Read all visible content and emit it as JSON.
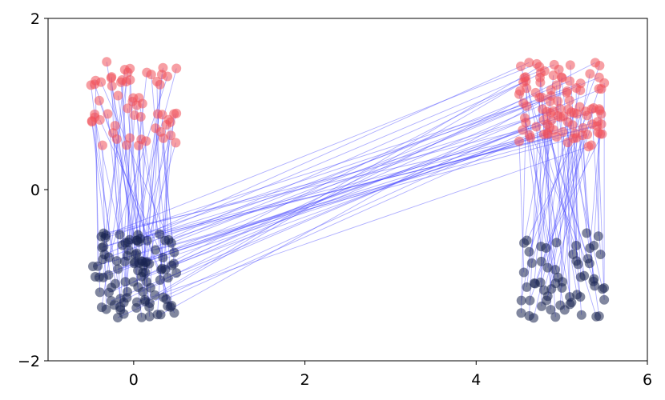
{
  "chart_data": {
    "type": "scatter",
    "title": "",
    "xlabel": "",
    "ylabel": "",
    "xlim": [
      -1,
      6
    ],
    "ylim": [
      -2,
      2
    ],
    "x_ticks": [
      0,
      2,
      4,
      6
    ],
    "y_ticks": [
      -2,
      0,
      2
    ],
    "x_tick_labels": [
      "0",
      "2",
      "4",
      "6"
    ],
    "y_tick_labels": [
      "−2",
      "0",
      "2"
    ],
    "grid": false,
    "legend": "none",
    "colors": {
      "source_points": "#1a2550",
      "target_points": "#f0505a",
      "lines": "#4040ff"
    },
    "clusters": [
      {
        "role": "source",
        "center": [
          0.0,
          -1.0
        ],
        "x_range": [
          -0.5,
          0.5
        ],
        "y_range": [
          -1.5,
          -0.5
        ],
        "count": 100
      },
      {
        "role": "source",
        "center": [
          5.0,
          -1.0
        ],
        "x_range": [
          4.5,
          5.5
        ],
        "y_range": [
          -1.5,
          -0.5
        ],
        "count": 60
      },
      {
        "role": "target",
        "center": [
          0.0,
          1.0
        ],
        "x_range": [
          -0.5,
          0.5
        ],
        "y_range": [
          0.5,
          1.5
        ],
        "count": 60
      },
      {
        "role": "target",
        "center": [
          5.0,
          1.0
        ],
        "x_range": [
          4.5,
          5.5
        ],
        "y_range": [
          0.5,
          1.5
        ],
        "count": 100
      }
    ],
    "matching": [
      {
        "from_cluster": 0,
        "to_cluster": 2,
        "count": 60
      },
      {
        "from_cluster": 0,
        "to_cluster": 3,
        "count": 40
      },
      {
        "from_cluster": 1,
        "to_cluster": 3,
        "count": 60
      }
    ]
  }
}
